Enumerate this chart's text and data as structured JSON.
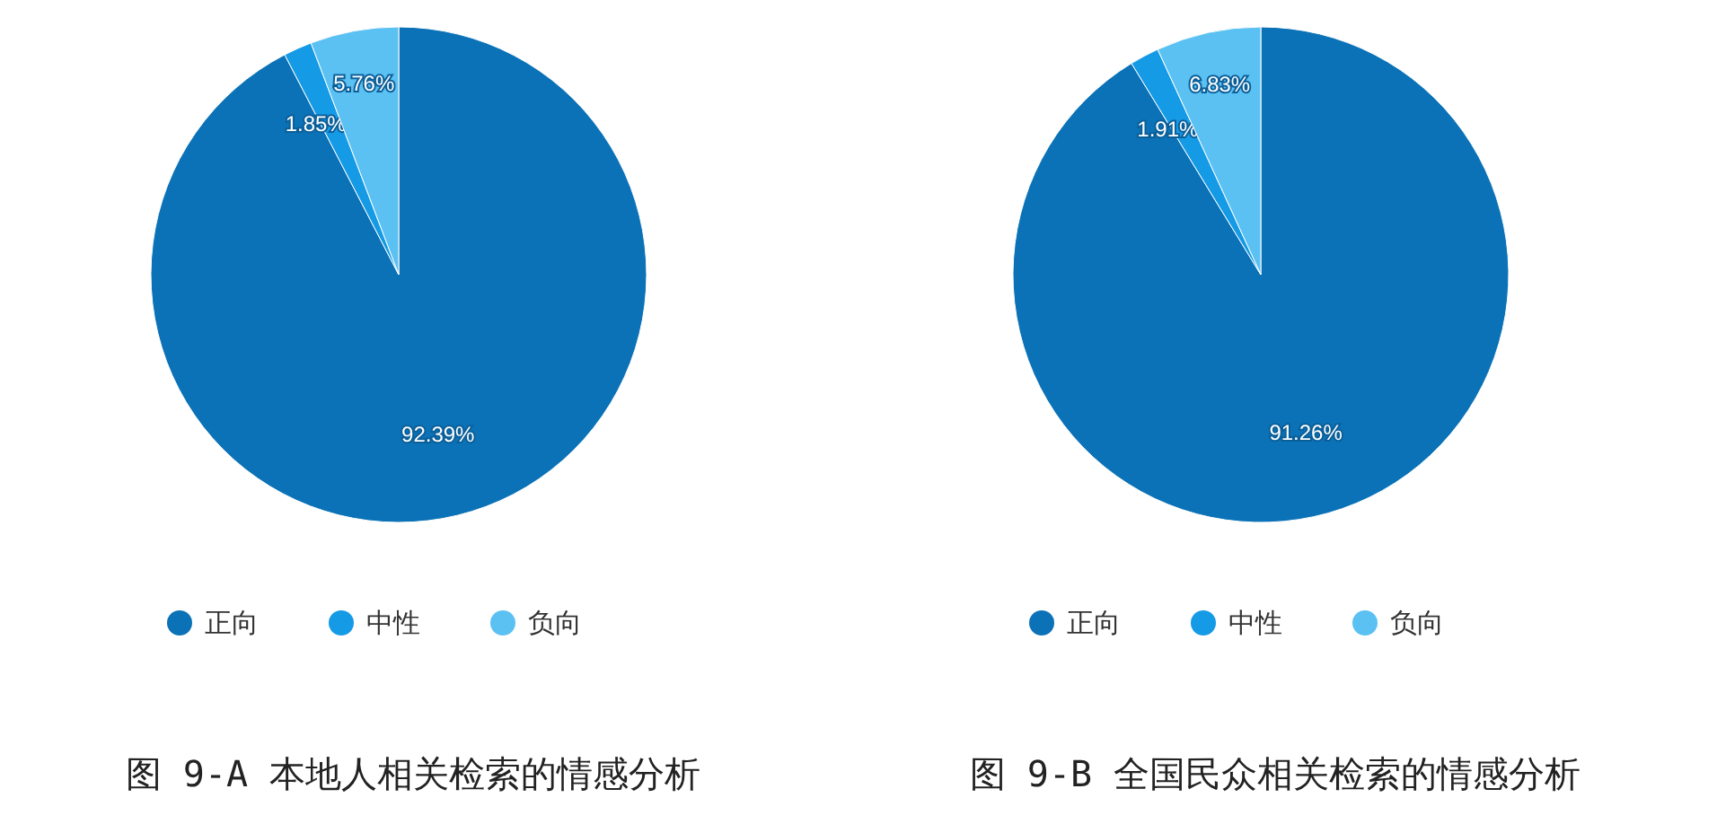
{
  "chart_data": [
    {
      "type": "pie",
      "title": "图 9-A 本地人相关检索的情感分析",
      "categories": [
        "正向",
        "中性",
        "负向"
      ],
      "values": [
        92.39,
        1.85,
        5.76
      ],
      "value_labels": [
        "92.39%",
        "1.85%",
        "5.76%"
      ],
      "colors": [
        "#0b72b7",
        "#159ae6",
        "#5bc1f2"
      ],
      "legend": "bottom"
    },
    {
      "type": "pie",
      "title": "图 9-B 全国民众相关检索的情感分析",
      "categories": [
        "正向",
        "中性",
        "负向"
      ],
      "values": [
        91.26,
        1.91,
        6.83
      ],
      "value_labels": [
        "91.26%",
        "1.91%",
        "6.83%"
      ],
      "colors": [
        "#0b72b7",
        "#159ae6",
        "#5bc1f2"
      ],
      "legend": "bottom"
    }
  ]
}
